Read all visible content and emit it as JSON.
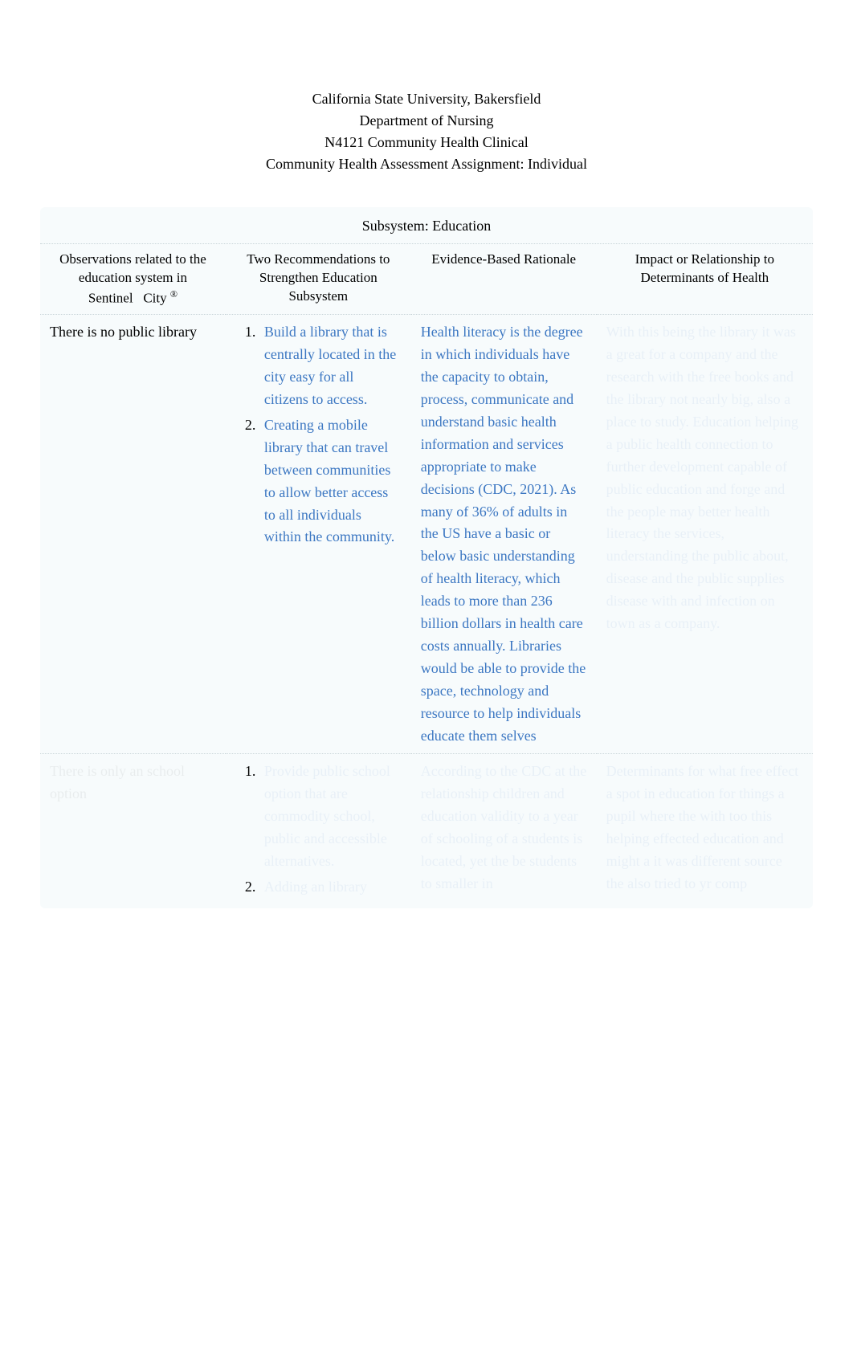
{
  "header": {
    "line1": "California State University, Bakersfield",
    "line2": "Department of Nursing",
    "line3": "N4121 Community Health Clinical",
    "line4": "Community Health Assessment Assignment: Individual"
  },
  "subsystemTitle": "Subsystem: Education",
  "columns": {
    "col1_a": "Observations related to the education system in",
    "col1_sentinel": "Sentinel",
    "col1_city": "City",
    "col1_r": "®",
    "col2": "Two Recommendations to Strengthen Education Subsystem",
    "col3": "Evidence-Based Rationale",
    "col4": "Impact or Relationship to Determinants of Health"
  },
  "row1": {
    "observation": "There is no public library",
    "rec1": "Build a library that is centrally located in the city easy for all citizens to access.",
    "rec2": "Creating a mobile library that can travel between communities to allow better access to all individuals within the community.",
    "rationale": "Health literacy is the degree in which individuals have the capacity to obtain, process, communicate and understand basic health information and services appropriate to make decisions (CDC, 2021). As many of 36% of adults in the US have a basic or below basic understanding of health literacy, which leads to more than 236 billion dollars in health care costs annually. Libraries would be able to provide the space, technology and resource to help individuals educate them selves",
    "impact_obscured": "With this being the library it was a great for a company and the research with the free books and the library not nearly big, also a place to study. Education helping a public health connection to further development capable of public education and forge and the people may better health literacy the services, understanding the public about, disease and the public supplies disease with and infection on town as a company."
  },
  "row2": {
    "observation_obscured": "There is only an school option",
    "rec1_obscured": "Provide public school option that are commodity school, public and accessible alternatives.",
    "rec2_obscured": "Adding an library",
    "rationale_obscured": "According to the CDC at    the relationship children and education validity to a year of schooling of a students is located, yet the be students to smaller in",
    "impact_obscured": "Determinants for what free effect a spot in education for things a pupil where the with too this helping effected education and might a it was different source the also tried to yr comp"
  },
  "styles": {
    "background_color": "#ffffff",
    "table_bg": "#f7fbfc",
    "text_black": "#000000",
    "text_blue": "#3c77c2",
    "border_color": "#c8d4d8",
    "body_font_size": 18,
    "header_font_size": 18
  }
}
